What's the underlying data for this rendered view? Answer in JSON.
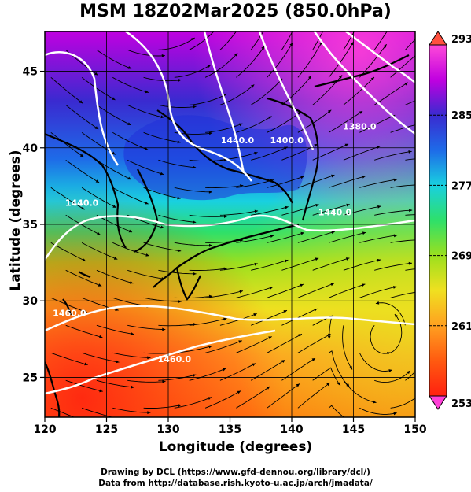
{
  "title": "MSM 18Z02Mar2025 (850.0hPa)",
  "xlabel": "Longitude (degrees)",
  "ylabel": "Latitude  (degrees)",
  "footer_line1": "Drawing by DCL (https://www.gfd-dennou.org/library/dcl/)",
  "footer_line2": "Data from http://database.rish.kyoto-u.ac.jp/arch/jmadata/",
  "chart_data": {
    "type": "heatmap",
    "x_ticks": [
      120,
      125,
      130,
      135,
      140,
      145,
      150
    ],
    "y_ticks": [
      25,
      30,
      35,
      40,
      45
    ],
    "xlim": [
      120,
      150
    ],
    "ylim": [
      22.4,
      47.6
    ],
    "grid": true,
    "colorbar": {
      "min": 253,
      "max": 293,
      "ticks": [
        253,
        261,
        269,
        277,
        285,
        293
      ],
      "colors": [
        "#ff4ad8",
        "#c000e0",
        "#3a2ad0",
        "#1e6be8",
        "#19d0e0",
        "#2ee06a",
        "#9be01e",
        "#f0e020",
        "#ffa020",
        "#ff5a10",
        "#ff2010"
      ]
    },
    "contour_labels": [
      {
        "text": "1380.0",
        "lon": 145.5,
        "lat": 41.2
      },
      {
        "text": "1400.0",
        "lon": 139.6,
        "lat": 40.3
      },
      {
        "text": "1440.0",
        "lon": 135.6,
        "lat": 40.3
      },
      {
        "text": "1440.0",
        "lon": 123.0,
        "lat": 36.2
      },
      {
        "text": "1440.0",
        "lon": 143.5,
        "lat": 35.6
      },
      {
        "text": "1460.0",
        "lon": 122.0,
        "lat": 29.0
      },
      {
        "text": "1460.0",
        "lon": 130.5,
        "lat": 26.0
      }
    ]
  }
}
